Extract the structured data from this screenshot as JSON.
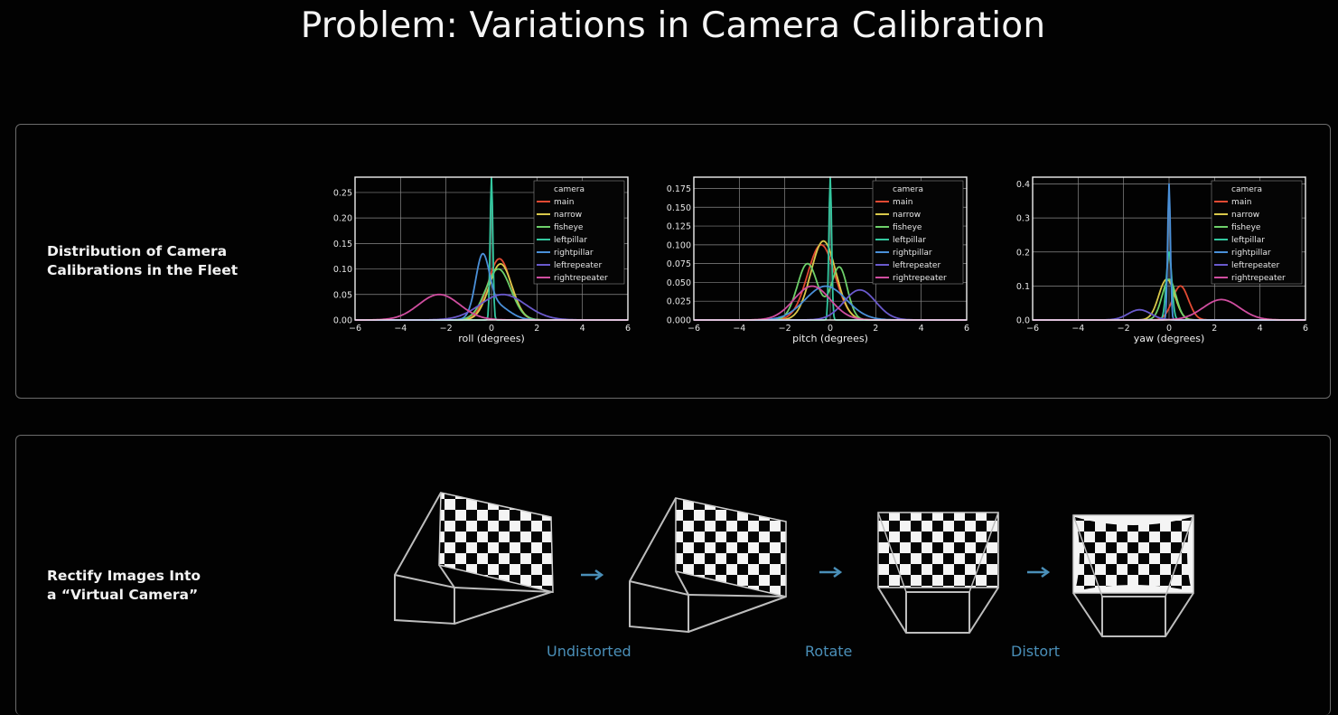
{
  "title": "Problem: Variations in Camera Calibration",
  "panels": {
    "distribution_label": "Distribution of Camera\nCalibrations in the Fleet",
    "rectify_label": "Rectify Images Into\na “Virtual Camera”"
  },
  "steps": {
    "undistorted": "Undistorted",
    "rotate": "Rotate",
    "distort": "Distort"
  },
  "chart_data": [
    {
      "type": "line",
      "xlabel": "roll (degrees)",
      "xlim": [
        -6,
        6
      ],
      "ylim": [
        0,
        0.28
      ],
      "xticks": [
        -6,
        -4,
        -2,
        0,
        2,
        4,
        6
      ],
      "yticks": [
        0.0,
        0.05,
        0.1,
        0.15,
        0.2,
        0.25
      ],
      "ytick_labels": [
        "0.00",
        "0.05",
        "0.10",
        "0.15",
        "0.20",
        "0.25"
      ],
      "legend_title": "camera",
      "legend_position": "top-right",
      "grid": true,
      "series": [
        {
          "name": "main",
          "color": "#e24a33",
          "peaks": [
            [
              0.35,
              0.12,
              0.5
            ]
          ]
        },
        {
          "name": "narrow",
          "color": "#d9c84a",
          "peaks": [
            [
              0.4,
              0.11,
              0.5
            ]
          ]
        },
        {
          "name": "fisheye",
          "color": "#6ed06a",
          "peaks": [
            [
              0.3,
              0.1,
              0.55
            ]
          ]
        },
        {
          "name": "leftpillar",
          "color": "#34c8a0",
          "peaks": [
            [
              0.0,
              0.28,
              0.06
            ]
          ]
        },
        {
          "name": "rightpillar",
          "color": "#4a90d9",
          "peaks": [
            [
              -0.4,
              0.11,
              0.3
            ],
            [
              0.15,
              0.03,
              0.6
            ]
          ]
        },
        {
          "name": "leftrepeater",
          "color": "#6a5acd",
          "peaks": [
            [
              0.5,
              0.05,
              1.0
            ]
          ]
        },
        {
          "name": "rightrepeater",
          "color": "#d04ea0",
          "peaks": [
            [
              -2.3,
              0.05,
              0.9
            ]
          ]
        }
      ]
    },
    {
      "type": "line",
      "xlabel": "pitch (degrees)",
      "xlim": [
        -6,
        6
      ],
      "ylim": [
        0,
        0.19
      ],
      "xticks": [
        -6,
        -4,
        -2,
        0,
        2,
        4,
        6
      ],
      "yticks": [
        0.0,
        0.025,
        0.05,
        0.075,
        0.1,
        0.125,
        0.15,
        0.175
      ],
      "ytick_labels": [
        "0.000",
        "0.025",
        "0.050",
        "0.075",
        "0.100",
        "0.125",
        "0.150",
        "0.175"
      ],
      "legend_title": "camera",
      "legend_position": "top-right",
      "grid": true,
      "series": [
        {
          "name": "main",
          "color": "#e24a33",
          "peaks": [
            [
              -0.4,
              0.1,
              0.6
            ]
          ]
        },
        {
          "name": "narrow",
          "color": "#d9c84a",
          "peaks": [
            [
              -0.3,
              0.105,
              0.55
            ]
          ]
        },
        {
          "name": "fisheye",
          "color": "#6ed06a",
          "peaks": [
            [
              -1.0,
              0.075,
              0.45
            ],
            [
              0.4,
              0.07,
              0.35
            ]
          ]
        },
        {
          "name": "leftpillar",
          "color": "#34c8a0",
          "peaks": [
            [
              0.0,
              0.19,
              0.06
            ]
          ]
        },
        {
          "name": "rightpillar",
          "color": "#4a90d9",
          "peaks": [
            [
              -0.2,
              0.045,
              0.9
            ]
          ]
        },
        {
          "name": "leftrepeater",
          "color": "#6a5acd",
          "peaks": [
            [
              1.3,
              0.04,
              0.7
            ]
          ]
        },
        {
          "name": "rightrepeater",
          "color": "#d04ea0",
          "peaks": [
            [
              -0.8,
              0.045,
              0.8
            ]
          ]
        }
      ]
    },
    {
      "type": "line",
      "xlabel": "yaw (degrees)",
      "xlim": [
        -6,
        6
      ],
      "ylim": [
        0,
        0.42
      ],
      "xticks": [
        -6,
        -4,
        -2,
        0,
        2,
        4,
        6
      ],
      "yticks": [
        0.0,
        0.1,
        0.2,
        0.3,
        0.4
      ],
      "ytick_labels": [
        "0.0",
        "0.1",
        "0.2",
        "0.3",
        "0.4"
      ],
      "legend_title": "camera",
      "legend_position": "top-right",
      "grid": true,
      "series": [
        {
          "name": "main",
          "color": "#e24a33",
          "peaks": [
            [
              0.5,
              0.1,
              0.35
            ]
          ]
        },
        {
          "name": "narrow",
          "color": "#d9c84a",
          "peaks": [
            [
              -0.1,
              0.12,
              0.35
            ]
          ]
        },
        {
          "name": "fisheye",
          "color": "#6ed06a",
          "peaks": [
            [
              0.0,
              0.12,
              0.3
            ]
          ]
        },
        {
          "name": "leftpillar",
          "color": "#34c8a0",
          "peaks": [
            [
              0.0,
              0.2,
              0.12
            ]
          ]
        },
        {
          "name": "rightpillar",
          "color": "#4a90d9",
          "peaks": [
            [
              0.0,
              0.4,
              0.06
            ]
          ]
        },
        {
          "name": "leftrepeater",
          "color": "#6a5acd",
          "peaks": [
            [
              -1.3,
              0.03,
              0.5
            ]
          ]
        },
        {
          "name": "rightrepeater",
          "color": "#d04ea0",
          "peaks": [
            [
              2.3,
              0.06,
              0.8
            ]
          ]
        }
      ]
    }
  ]
}
